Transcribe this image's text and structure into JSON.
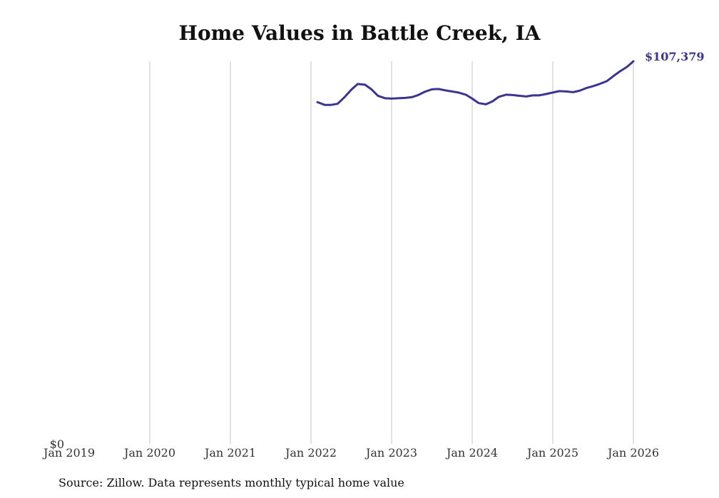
{
  "chart_data": {
    "type": "line",
    "title": "Home Values in Battle Creek, IA",
    "xlabel": "",
    "ylabel": "",
    "x_ticks": [
      "Jan 2019",
      "Jan 2020",
      "Jan 2021",
      "Jan 2022",
      "Jan 2023",
      "Jan 2024",
      "Jan 2025",
      "Jan 2026"
    ],
    "x_range": [
      2019.0,
      2026.0
    ],
    "ylim": [
      0,
      107379
    ],
    "y_tick_label": "$0",
    "grid": "vertical",
    "line_color": "#3b3591",
    "series": [
      {
        "name": "Typical home value",
        "x": [
          2022.08,
          2022.17,
          2022.25,
          2022.33,
          2022.42,
          2022.5,
          2022.58,
          2022.67,
          2022.75,
          2022.83,
          2022.92,
          2023.0,
          2023.08,
          2023.17,
          2023.25,
          2023.33,
          2023.42,
          2023.5,
          2023.58,
          2023.67,
          2023.75,
          2023.83,
          2023.92,
          2024.0,
          2024.08,
          2024.17,
          2024.25,
          2024.33,
          2024.42,
          2024.5,
          2024.58,
          2024.67,
          2024.75,
          2024.83,
          2024.92,
          2025.0,
          2025.08,
          2025.17,
          2025.25,
          2025.33,
          2025.42,
          2025.5,
          2025.58,
          2025.67,
          2025.75,
          2025.83,
          2025.92,
          2026.0
        ],
        "values": [
          95900,
          95150,
          95150,
          95450,
          97400,
          99400,
          101000,
          100800,
          99500,
          97700,
          97000,
          96900,
          97000,
          97100,
          97300,
          97900,
          98900,
          99500,
          99600,
          99200,
          98900,
          98600,
          98000,
          96900,
          95650,
          95300,
          96100,
          97400,
          98000,
          97900,
          97700,
          97500,
          97800,
          97800,
          98200,
          98600,
          99000,
          98900,
          98700,
          99100,
          99900,
          100400,
          101000,
          101800,
          103200,
          104500,
          105800,
          107379
        ]
      }
    ],
    "end_label": "$107,379"
  },
  "source_note": "Source: Zillow. Data represents monthly typical home value"
}
